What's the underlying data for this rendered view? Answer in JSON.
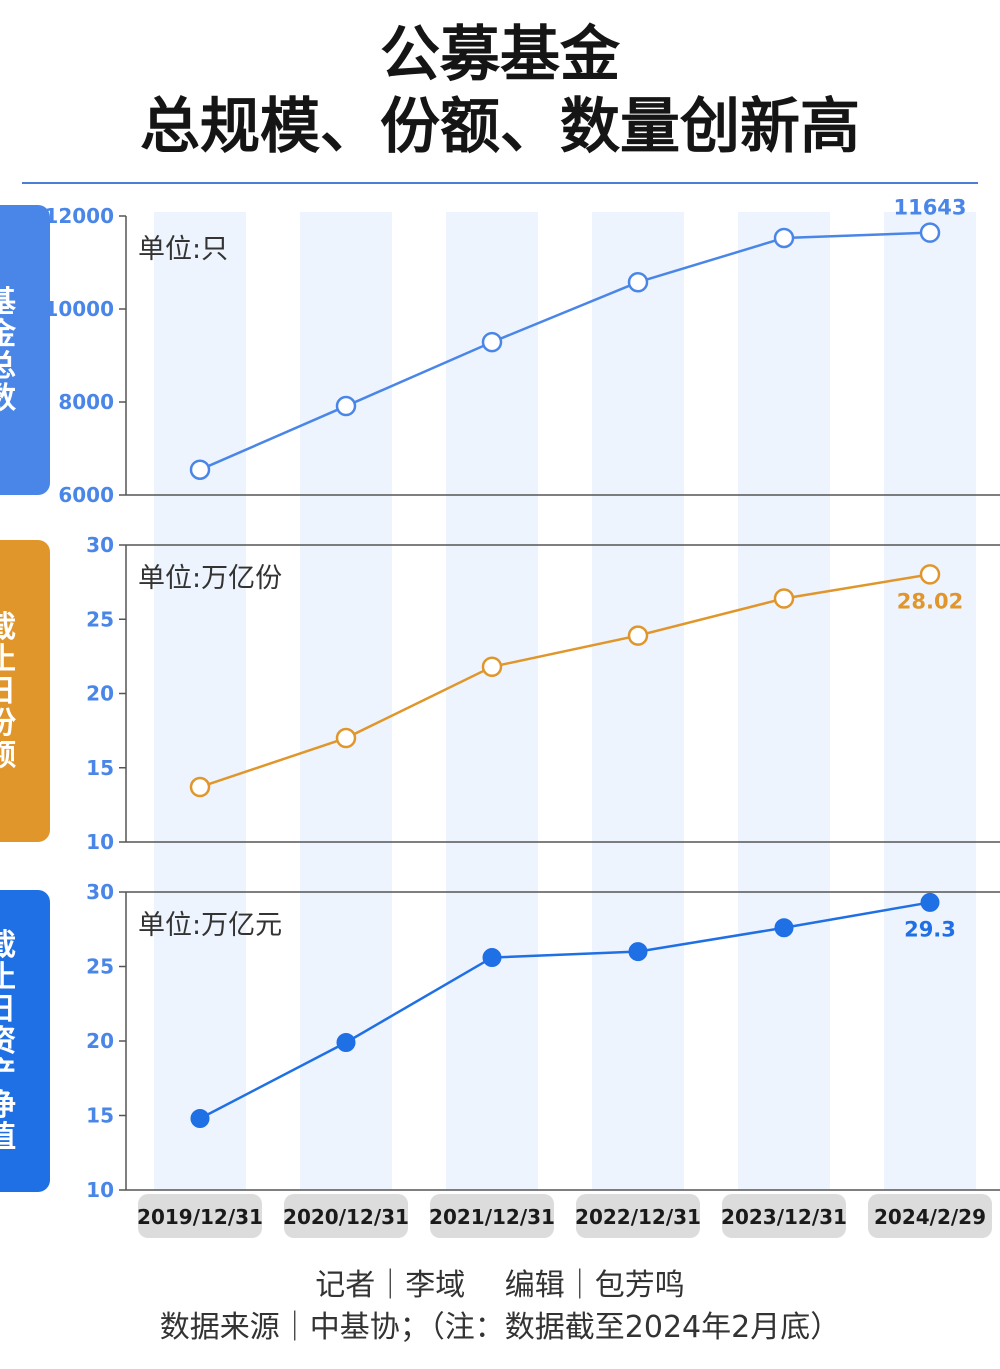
{
  "title_line1": "公募基金",
  "title_line2": "总规模、份额、数量创新高",
  "colors": {
    "panel1": "#4a86e8",
    "panel2": "#e0962a",
    "panel3": "#1f6fe5",
    "band": "#eef4fd",
    "axis": "#555555",
    "tick_text_blue": "#4a86e8",
    "category_bg": "#dcdcdc"
  },
  "chart_data": [
    {
      "type": "line",
      "label": "基金总数",
      "unit": "单位:只",
      "categories": [
        "2019/12/31",
        "2020/12/31",
        "2021/12/31",
        "2022/12/31",
        "2023/12/31",
        "2024/2/29"
      ],
      "values": [
        6544,
        7913,
        9288,
        10576,
        11528,
        11643
      ],
      "ylim": [
        6000,
        12000
      ],
      "yticks": [
        12000,
        10000,
        8000,
        6000
      ],
      "marker": "hollow",
      "color": "#4a86e8",
      "annotation": "11643",
      "grid": false
    },
    {
      "type": "line",
      "label": "截止日份额",
      "unit": "单位:万亿份",
      "categories": [
        "2019/12/31",
        "2020/12/31",
        "2021/12/31",
        "2022/12/31",
        "2023/12/31",
        "2024/2/29"
      ],
      "values": [
        13.7,
        17.0,
        21.8,
        23.9,
        26.4,
        28.02
      ],
      "ylim": [
        10,
        30
      ],
      "yticks": [
        30,
        25,
        20,
        15,
        10
      ],
      "marker": "hollow",
      "color": "#e0962a",
      "annotation": "28.02",
      "grid": false
    },
    {
      "type": "line",
      "label": "截止日资产净值",
      "unit": "单位:万亿元",
      "categories": [
        "2019/12/31",
        "2020/12/31",
        "2021/12/31",
        "2022/12/31",
        "2023/12/31",
        "2024/2/29"
      ],
      "values": [
        14.8,
        19.9,
        25.6,
        26.0,
        27.6,
        29.3
      ],
      "ylim": [
        10,
        30
      ],
      "yticks": [
        30,
        25,
        20,
        15,
        10
      ],
      "marker": "filled",
      "color": "#1f6fe5",
      "annotation": "29.3",
      "grid": false
    }
  ],
  "credits": {
    "line1": "记者｜李域　 编辑｜包芳鸣",
    "line2": "数据来源｜中基协；（注：数据截至2024年2月底）"
  }
}
